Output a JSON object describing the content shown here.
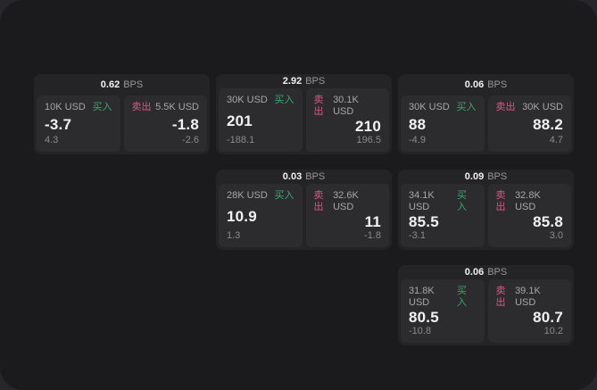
{
  "labels": {
    "bps_unit": "BPS",
    "buy": "买入",
    "sell": "卖出"
  },
  "colors": {
    "outer-bg": "#27272b",
    "screen-bg": "#1b1b1d",
    "card-bg": "#242427",
    "panel-bg": "#2c2c2f",
    "value-white": "#f2f2f2",
    "label-gray": "#a7a7ab",
    "sub-gray": "#8b8b8f",
    "unit-gray": "#98989c",
    "buy-green": "#37a96b",
    "sell-pink": "#dd5680"
  },
  "cards": [
    {
      "row": 1,
      "col": 1,
      "bps": "0.62",
      "buy": {
        "amount": "10K USD",
        "price": "-3.7",
        "change": "4.3"
      },
      "sell": {
        "amount": "5.5K USD",
        "price": "-1.8",
        "change": "-2.6"
      }
    },
    {
      "row": 1,
      "col": 2,
      "bps": "2.92",
      "buy": {
        "amount": "30K USD",
        "price": "201",
        "change": "-188.1"
      },
      "sell": {
        "amount": "30.1K USD",
        "price": "210",
        "change": "196.5"
      }
    },
    {
      "row": 1,
      "col": 3,
      "bps": "0.06",
      "buy": {
        "amount": "30K USD",
        "price": "88",
        "change": "-4.9"
      },
      "sell": {
        "amount": "30K USD",
        "price": "88.2",
        "change": "4.7"
      }
    },
    {
      "row": 2,
      "col": 2,
      "bps": "0.03",
      "buy": {
        "amount": "28K USD",
        "price": "10.9",
        "change": "1.3"
      },
      "sell": {
        "amount": "32.6K USD",
        "price": "11",
        "change": "-1.8"
      }
    },
    {
      "row": 2,
      "col": 3,
      "bps": "0.09",
      "buy": {
        "amount": "34.1K USD",
        "price": "85.5",
        "change": "-3.1"
      },
      "sell": {
        "amount": "32.8K USD",
        "price": "85.8",
        "change": "3.0"
      }
    },
    {
      "row": 3,
      "col": 3,
      "bps": "0.06",
      "buy": {
        "amount": "31.8K USD",
        "price": "80.5",
        "change": "-10.8"
      },
      "sell": {
        "amount": "39.1K USD",
        "price": "80.7",
        "change": "10.2"
      }
    }
  ]
}
